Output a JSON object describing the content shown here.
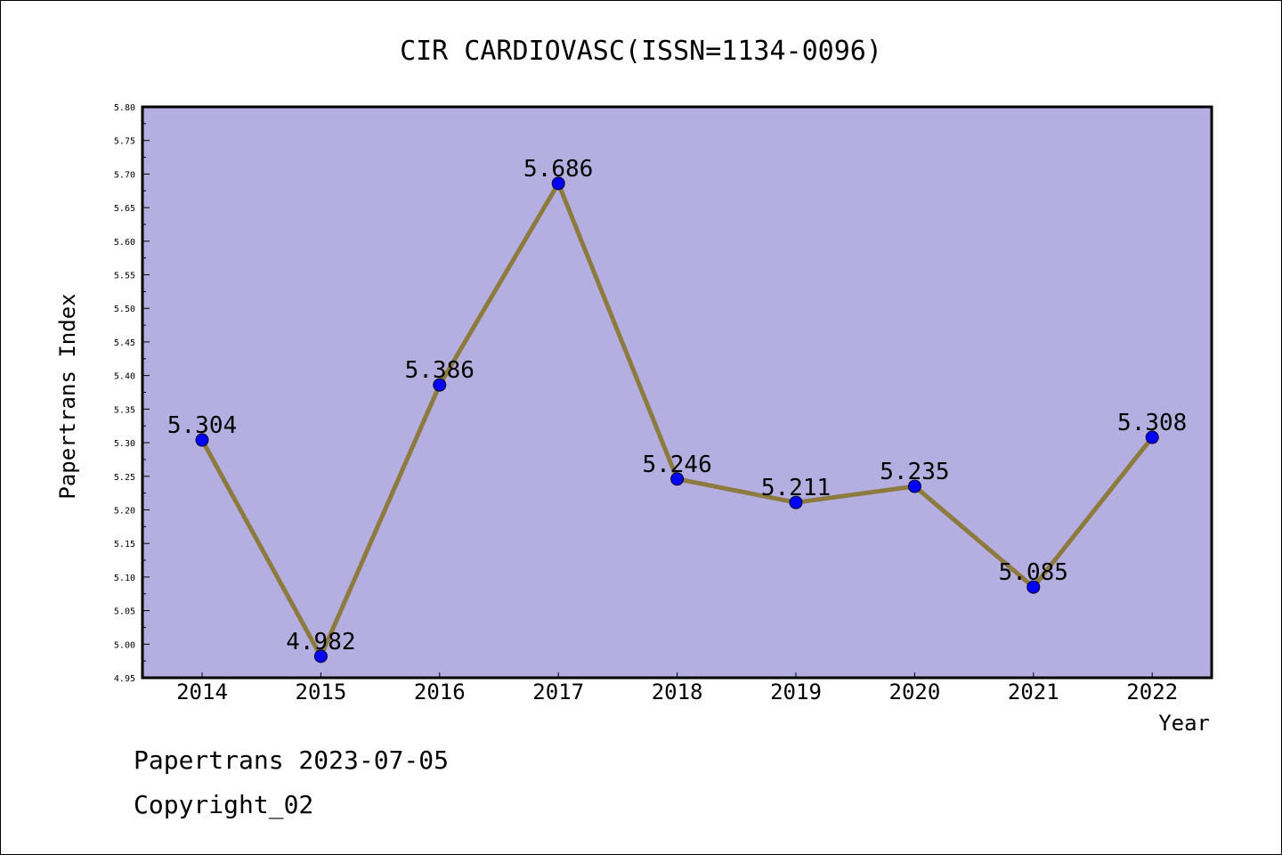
{
  "chart_data": {
    "type": "line",
    "title": "CIR CARDIOVASC(ISSN=1134-0096)",
    "xlabel": "Year",
    "ylabel": "Papertrans Index",
    "categories": [
      "2014",
      "2015",
      "2016",
      "2017",
      "2018",
      "2019",
      "2020",
      "2021",
      "2022"
    ],
    "values": [
      5.304,
      4.982,
      5.386,
      5.686,
      5.246,
      5.211,
      5.235,
      5.085,
      5.308
    ],
    "data_labels": [
      "5.304",
      "4.982",
      "5.386",
      "5.686",
      "5.246",
      "5.211",
      "5.235",
      "5.085",
      "5.308"
    ],
    "ylim": [
      4.95,
      5.8
    ],
    "yticks": [
      "4.95",
      "5.00",
      "5.05",
      "5.10",
      "5.15",
      "5.20",
      "5.25",
      "5.30",
      "5.35",
      "5.40",
      "5.45",
      "5.50",
      "5.55",
      "5.60",
      "5.65",
      "5.70",
      "5.75",
      "5.80"
    ],
    "grid": false,
    "colors": {
      "plot_background": "#b5afe1",
      "line": "#8c7a3e",
      "marker": "#0000ff"
    }
  },
  "footer": {
    "line1": "Papertrans 2023-07-05",
    "line2": "Copyright_02"
  }
}
